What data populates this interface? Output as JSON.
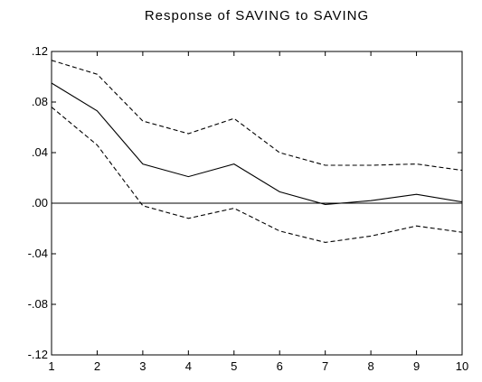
{
  "chart_data": {
    "type": "line",
    "title": "Response of SAVING  to SAVING",
    "xlabel": "",
    "ylabel": "",
    "x": [
      1,
      2,
      3,
      4,
      5,
      6,
      7,
      8,
      9,
      10
    ],
    "xlim": [
      1,
      10
    ],
    "ylim": [
      -0.12,
      0.12
    ],
    "x_tick_labels": [
      "1",
      "2",
      "3",
      "4",
      "5",
      "6",
      "7",
      "8",
      "9",
      "10"
    ],
    "y_ticks": [
      {
        "value": 0.12,
        "label": ".12"
      },
      {
        "value": 0.08,
        "label": ".08"
      },
      {
        "value": 0.04,
        "label": ".04"
      },
      {
        "value": 0.0,
        "label": ".00"
      },
      {
        "value": -0.04,
        "label": "-.04"
      },
      {
        "value": -0.08,
        "label": "-.08"
      },
      {
        "value": -0.12,
        "label": "-.12"
      }
    ],
    "grid": false,
    "zero_line": true,
    "series": [
      {
        "role": "response",
        "style": "solid",
        "color": "#000000",
        "values": [
          0.095,
          0.073,
          0.031,
          0.021,
          0.031,
          0.009,
          -0.001,
          0.002,
          0.007,
          0.001
        ]
      },
      {
        "role": "upper-band",
        "style": "dashed",
        "color": "#000000",
        "values": [
          0.113,
          0.102,
          0.065,
          0.055,
          0.067,
          0.04,
          0.03,
          0.03,
          0.031,
          0.026
        ]
      },
      {
        "role": "lower-band",
        "style": "dashed",
        "color": "#000000",
        "values": [
          0.076,
          0.046,
          -0.002,
          -0.012,
          -0.004,
          -0.022,
          -0.031,
          -0.026,
          -0.018,
          -0.023
        ]
      }
    ]
  }
}
